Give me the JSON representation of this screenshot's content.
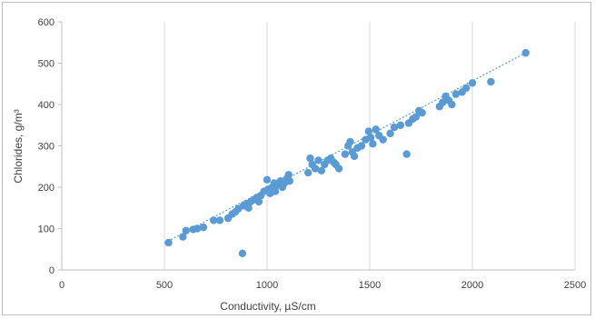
{
  "chart_data": {
    "type": "scatter",
    "title": "",
    "xlabel": "Conductivity, µS/cm",
    "ylabel": "Chlorides, g/m³",
    "xlim": [
      0,
      2500
    ],
    "ylim": [
      0,
      600
    ],
    "xticks": [
      0,
      500,
      1000,
      1500,
      2000,
      2500
    ],
    "yticks": [
      0,
      100,
      200,
      300,
      400,
      500,
      600
    ],
    "grid": "vertical",
    "legend": "none",
    "colors": {
      "points": "#5b9bd5",
      "trendline": "#5b9bd5",
      "grid": "#d9d9d9"
    },
    "trendline": {
      "type": "linear",
      "x": [
        500,
        2260
      ],
      "y": [
        65,
        525
      ]
    },
    "series": [
      {
        "points": [
          [
            520,
            66
          ],
          [
            590,
            80
          ],
          [
            605,
            95
          ],
          [
            640,
            98
          ],
          [
            660,
            100
          ],
          [
            690,
            103
          ],
          [
            740,
            120
          ],
          [
            770,
            120
          ],
          [
            810,
            125
          ],
          [
            830,
            135
          ],
          [
            845,
            140
          ],
          [
            860,
            148
          ],
          [
            880,
            40
          ],
          [
            885,
            155
          ],
          [
            900,
            160
          ],
          [
            910,
            150
          ],
          [
            920,
            165
          ],
          [
            935,
            170
          ],
          [
            950,
            175
          ],
          [
            960,
            165
          ],
          [
            970,
            180
          ],
          [
            985,
            190
          ],
          [
            1000,
            218
          ],
          [
            1005,
            195
          ],
          [
            1015,
            185
          ],
          [
            1025,
            200
          ],
          [
            1035,
            210
          ],
          [
            1040,
            190
          ],
          [
            1055,
            205
          ],
          [
            1065,
            215
          ],
          [
            1075,
            200
          ],
          [
            1085,
            210
          ],
          [
            1095,
            220
          ],
          [
            1105,
            230
          ],
          [
            1110,
            215
          ],
          [
            1200,
            235
          ],
          [
            1210,
            270
          ],
          [
            1220,
            255
          ],
          [
            1235,
            245
          ],
          [
            1250,
            265
          ],
          [
            1265,
            240
          ],
          [
            1280,
            255
          ],
          [
            1295,
            265
          ],
          [
            1310,
            270
          ],
          [
            1325,
            260
          ],
          [
            1335,
            255
          ],
          [
            1350,
            245
          ],
          [
            1380,
            280
          ],
          [
            1395,
            300
          ],
          [
            1405,
            310
          ],
          [
            1415,
            285
          ],
          [
            1425,
            275
          ],
          [
            1440,
            295
          ],
          [
            1460,
            300
          ],
          [
            1480,
            315
          ],
          [
            1495,
            335
          ],
          [
            1505,
            320
          ],
          [
            1515,
            305
          ],
          [
            1530,
            340
          ],
          [
            1545,
            325
          ],
          [
            1565,
            315
          ],
          [
            1600,
            330
          ],
          [
            1620,
            345
          ],
          [
            1650,
            350
          ],
          [
            1680,
            280
          ],
          [
            1690,
            355
          ],
          [
            1710,
            365
          ],
          [
            1725,
            370
          ],
          [
            1740,
            385
          ],
          [
            1755,
            380
          ],
          [
            1840,
            395
          ],
          [
            1855,
            405
          ],
          [
            1870,
            420
          ],
          [
            1885,
            410
          ],
          [
            1900,
            400
          ],
          [
            1920,
            425
          ],
          [
            1950,
            430
          ],
          [
            1970,
            440
          ],
          [
            2000,
            452
          ],
          [
            2090,
            455
          ],
          [
            2260,
            525
          ]
        ]
      }
    ]
  }
}
